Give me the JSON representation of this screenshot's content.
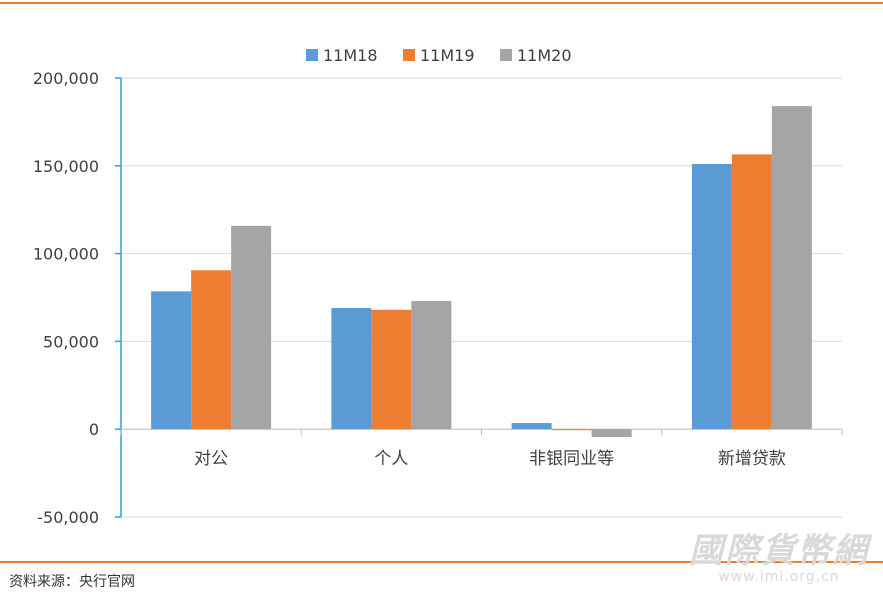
{
  "source_text": "资料来源：央行官网",
  "watermark": {
    "text": "國際貨幣網",
    "url": "www.imi.org.cn"
  },
  "chart_data": {
    "type": "bar",
    "categories": [
      "对公",
      "个人",
      "非银同业等",
      "新增贷款"
    ],
    "series": [
      {
        "name": "11M18",
        "color": "#5B9BD5",
        "values": [
          78500,
          69000,
          3500,
          151000
        ]
      },
      {
        "name": "11M19",
        "color": "#ED7D31",
        "values": [
          90500,
          68000,
          -500,
          156500
        ]
      },
      {
        "name": "11M20",
        "color": "#A5A5A5",
        "values": [
          115800,
          73000,
          -4500,
          184000
        ]
      }
    ],
    "ylim": [
      -50000,
      200000
    ],
    "yticks": [
      200000,
      150000,
      100000,
      50000,
      0,
      -50000
    ],
    "ytick_labels": [
      "200,000",
      "150,000",
      "100,000",
      "50,000",
      "0",
      "-50,000"
    ],
    "legend_position": "top-center",
    "grid": true,
    "axis_color": "#29A3DC"
  }
}
